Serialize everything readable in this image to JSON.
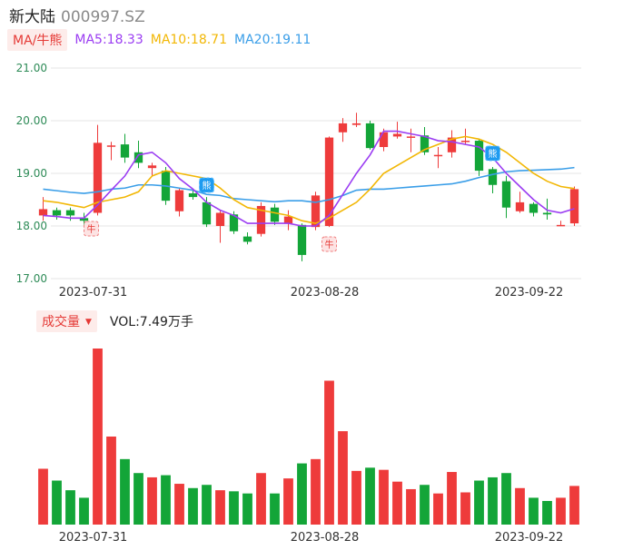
{
  "header": {
    "name": "新大陆",
    "code": "000997.SZ"
  },
  "legend": {
    "button_label": "MA/牛熊",
    "ma5": "MA5:18.33",
    "ma10": "MA10:18.71",
    "ma20": "MA20:19.11",
    "ma5_color": "#9b3df2",
    "ma10_color": "#f2b705",
    "ma20_color": "#3a9ee8"
  },
  "volume_legend": {
    "button_label": "成交量",
    "vol_text": "VOL:7.49万手"
  },
  "colors": {
    "up": "#ee3b3b",
    "down": "#13a538"
  },
  "markers": [
    {
      "label": "牛"
    },
    {
      "label": "熊"
    },
    {
      "label": "牛"
    },
    {
      "label": "熊"
    }
  ],
  "chart_data": {
    "type": "candlestick",
    "y_ticks": [
      "21.00",
      "20.00",
      "19.00",
      "18.00",
      "17.00"
    ],
    "ylim": [
      17.0,
      21.0
    ],
    "x_ticks": [
      "2023-07-31",
      "2023-08-28",
      "2023-09-22"
    ],
    "candles": [
      {
        "o": 18.2,
        "c": 18.32,
        "h": 18.55,
        "l": 18.1,
        "v": 2.6
      },
      {
        "o": 18.3,
        "c": 18.2,
        "h": 18.35,
        "l": 18.12,
        "v": 2.05
      },
      {
        "o": 18.3,
        "c": 18.2,
        "h": 18.35,
        "l": 18.1,
        "v": 1.6
      },
      {
        "o": 18.15,
        "c": 18.1,
        "h": 18.25,
        "l": 18.02,
        "v": 1.25
      },
      {
        "o": 18.25,
        "c": 19.58,
        "h": 19.92,
        "l": 18.2,
        "v": 8.2
      },
      {
        "o": 19.53,
        "c": 19.53,
        "h": 19.6,
        "l": 19.25,
        "v": 4.1
      },
      {
        "o": 19.55,
        "c": 19.3,
        "h": 19.75,
        "l": 19.2,
        "v": 3.05
      },
      {
        "o": 19.4,
        "c": 19.2,
        "h": 19.62,
        "l": 19.1,
        "v": 2.4
      },
      {
        "o": 19.1,
        "c": 19.15,
        "h": 19.2,
        "l": 18.95,
        "v": 2.2
      },
      {
        "o": 19.05,
        "c": 18.48,
        "h": 19.12,
        "l": 18.4,
        "v": 2.3
      },
      {
        "o": 18.28,
        "c": 18.68,
        "h": 18.72,
        "l": 18.18,
        "v": 1.9
      },
      {
        "o": 18.62,
        "c": 18.55,
        "h": 18.7,
        "l": 18.5,
        "v": 1.7
      },
      {
        "o": 18.45,
        "c": 18.03,
        "h": 18.55,
        "l": 17.98,
        "v": 1.85
      },
      {
        "o": 18.0,
        "c": 18.25,
        "h": 18.3,
        "l": 17.68,
        "v": 1.6
      },
      {
        "o": 18.22,
        "c": 17.9,
        "h": 18.28,
        "l": 17.85,
        "v": 1.55
      },
      {
        "o": 17.8,
        "c": 17.7,
        "h": 17.88,
        "l": 17.65,
        "v": 1.45
      },
      {
        "o": 17.85,
        "c": 18.38,
        "h": 18.45,
        "l": 17.8,
        "v": 2.4
      },
      {
        "o": 18.35,
        "c": 18.08,
        "h": 18.42,
        "l": 18.02,
        "v": 1.45
      },
      {
        "o": 18.05,
        "c": 18.18,
        "h": 18.3,
        "l": 17.92,
        "v": 2.15
      },
      {
        "o": 18.02,
        "c": 17.45,
        "h": 18.05,
        "l": 17.33,
        "v": 2.85
      },
      {
        "o": 17.98,
        "c": 18.58,
        "h": 18.65,
        "l": 17.92,
        "v": 3.05
      },
      {
        "o": 18.0,
        "c": 19.68,
        "h": 19.7,
        "l": 17.98,
        "v": 6.7
      },
      {
        "o": 19.78,
        "c": 19.95,
        "h": 20.05,
        "l": 19.6,
        "v": 4.35
      },
      {
        "o": 19.92,
        "c": 19.95,
        "h": 20.15,
        "l": 19.88,
        "v": 2.5
      },
      {
        "o": 19.95,
        "c": 19.48,
        "h": 20.0,
        "l": 19.45,
        "v": 2.65
      },
      {
        "o": 19.5,
        "c": 19.78,
        "h": 19.85,
        "l": 19.42,
        "v": 2.55
      },
      {
        "o": 19.7,
        "c": 19.75,
        "h": 19.98,
        "l": 19.66,
        "v": 2.0
      },
      {
        "o": 19.68,
        "c": 19.7,
        "h": 19.85,
        "l": 19.4,
        "v": 1.65
      },
      {
        "o": 19.72,
        "c": 19.4,
        "h": 19.88,
        "l": 19.35,
        "v": 1.85
      },
      {
        "o": 19.35,
        "c": 19.35,
        "h": 19.5,
        "l": 19.1,
        "v": 1.45
      },
      {
        "o": 19.4,
        "c": 19.68,
        "h": 19.82,
        "l": 19.3,
        "v": 2.45
      },
      {
        "o": 19.6,
        "c": 19.62,
        "h": 19.85,
        "l": 19.55,
        "v": 1.5
      },
      {
        "o": 19.62,
        "c": 19.05,
        "h": 19.65,
        "l": 18.95,
        "v": 2.05
      },
      {
        "o": 19.08,
        "c": 18.78,
        "h": 19.12,
        "l": 18.62,
        "v": 2.2
      },
      {
        "o": 18.85,
        "c": 18.35,
        "h": 18.95,
        "l": 18.15,
        "v": 2.4
      },
      {
        "o": 18.28,
        "c": 18.45,
        "h": 18.65,
        "l": 18.25,
        "v": 1.7
      },
      {
        "o": 18.42,
        "c": 18.25,
        "h": 18.45,
        "l": 18.18,
        "v": 1.25
      },
      {
        "o": 18.25,
        "c": 18.22,
        "h": 18.52,
        "l": 18.12,
        "v": 1.1
      },
      {
        "o": 18.02,
        "c": 18.02,
        "h": 18.1,
        "l": 18.0,
        "v": 1.25
      },
      {
        "o": 18.05,
        "c": 18.7,
        "h": 18.75,
        "l": 18.0,
        "v": 1.8
      }
    ],
    "ma5": [
      18.2,
      18.18,
      18.15,
      18.15,
      18.4,
      18.68,
      18.95,
      19.35,
      19.4,
      19.2,
      18.9,
      18.7,
      18.45,
      18.3,
      18.2,
      18.05,
      18.05,
      18.05,
      18.05,
      18.0,
      18.0,
      18.2,
      18.6,
      19.0,
      19.35,
      19.8,
      19.8,
      19.75,
      19.7,
      19.62,
      19.6,
      19.55,
      19.5,
      19.3,
      19.0,
      18.75,
      18.5,
      18.3,
      18.25,
      18.33
    ],
    "ma10": [
      18.48,
      18.45,
      18.4,
      18.35,
      18.45,
      18.5,
      18.55,
      18.65,
      18.95,
      19.05,
      19.0,
      18.95,
      18.9,
      18.72,
      18.5,
      18.35,
      18.3,
      18.25,
      18.2,
      18.1,
      18.05,
      18.15,
      18.3,
      18.45,
      18.7,
      19.0,
      19.15,
      19.3,
      19.45,
      19.55,
      19.65,
      19.7,
      19.65,
      19.55,
      19.4,
      19.2,
      19.0,
      18.85,
      18.75,
      18.71
    ],
    "ma20": [
      18.7,
      18.67,
      18.64,
      18.62,
      18.65,
      18.7,
      18.72,
      18.78,
      18.78,
      18.76,
      18.72,
      18.68,
      18.6,
      18.58,
      18.52,
      18.5,
      18.48,
      18.46,
      18.48,
      18.48,
      18.45,
      18.5,
      18.58,
      18.68,
      18.7,
      18.7,
      18.72,
      18.74,
      18.76,
      18.78,
      18.8,
      18.85,
      18.92,
      18.98,
      19.03,
      19.05,
      19.06,
      19.07,
      19.08,
      19.11
    ]
  }
}
